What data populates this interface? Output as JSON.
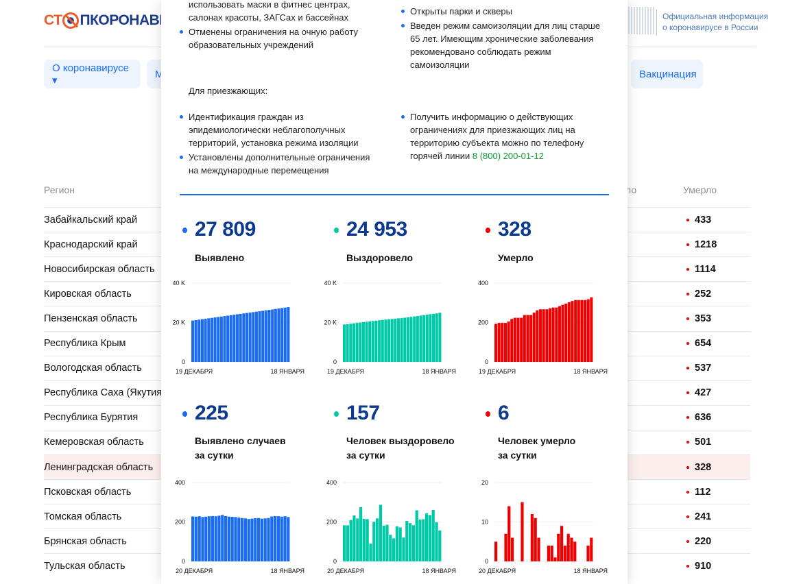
{
  "header": {
    "logo_text": "СТОПКОРОНАВИРУС",
    "logo_part1": "СТ",
    "logo_part2": "ПКОРОНАВИ",
    "gov_info": [
      "Официальная информация",
      "о коронавирусе в России"
    ]
  },
  "nav": {
    "items": [
      {
        "label": "О коронавирусе ▾"
      },
      {
        "label": "М"
      },
      {
        "label": "Вакцинация"
      }
    ]
  },
  "table": {
    "headers": {
      "region": "Регион",
      "recovered_partial": "ло",
      "deaths": "Умерло"
    },
    "rows": [
      {
        "region": "Забайкальский край",
        "deaths": "433"
      },
      {
        "region": "Краснодарский край",
        "deaths": "1218"
      },
      {
        "region": "Новосибирская область",
        "deaths": "1114"
      },
      {
        "region": "Кировская область",
        "deaths": "252"
      },
      {
        "region": "Пензенская область",
        "deaths": "353"
      },
      {
        "region": "Республика Крым",
        "deaths": "654"
      },
      {
        "region": "Вологодская область",
        "deaths": "537"
      },
      {
        "region": "Республика Саха (Якутия)",
        "deaths": "427"
      },
      {
        "region": "Республика Бурятия",
        "deaths": "636"
      },
      {
        "region": "Кемеровская область",
        "deaths": "501"
      },
      {
        "region": "Ленинградская область",
        "deaths": "328",
        "highlighted": true
      },
      {
        "region": "Псковская область",
        "deaths": "112"
      },
      {
        "region": "Томская область",
        "deaths": "241"
      },
      {
        "region": "Брянская область",
        "deaths": "220"
      },
      {
        "region": "Тульская область",
        "deaths": "910"
      }
    ]
  },
  "popup": {
    "left_top": [
      "использовать маски в фитнес центрах,",
      "салонах красоты, ЗАГСах и бассейнах"
    ],
    "left_bullet": [
      "Отменены ограничения на очную работу",
      "образовательных учреждений"
    ],
    "right_bullets": [
      [
        "Открыты парки и скверы"
      ],
      [
        "Введен режим самоизоляции для лиц старше",
        "65 лет. Имеющим хронические заболевания",
        "рекомендовано соблюдать режим",
        "самоизоляции"
      ]
    ],
    "arrivals_title": "Для приезжающих:",
    "arrivals_left": [
      [
        "Идентификация граждан из",
        "эпидемиологически неблагополучных",
        "территорий, установка режима изоляции"
      ],
      [
        "Установлены дополнительные ограничения",
        "на международные перемещения"
      ]
    ],
    "arrivals_right": [
      "Получить информацию о действующих",
      "ограничениях для приезжающих лиц на",
      "территорию субъекта можно по телефону",
      "горячей линии "
    ],
    "hotline": "8 (800) 200-01-12"
  },
  "stats": [
    {
      "value": "27 809",
      "label": [
        "Выявлено"
      ],
      "color": "#1a6cf0"
    },
    {
      "value": "24 953",
      "label": [
        "Выздоровело"
      ],
      "color": "#00c9a7"
    },
    {
      "value": "328",
      "label": [
        "Умерло"
      ],
      "color": "#f00000"
    },
    {
      "value": "225",
      "label": [
        "Выявлено случаев",
        "за сутки"
      ],
      "color": "#1a6cf0"
    },
    {
      "value": "157",
      "label": [
        "Человек выздоровело",
        "за сутки"
      ],
      "color": "#00c9a7"
    },
    {
      "value": "6",
      "label": [
        "Человек умерло",
        "за сутки"
      ],
      "color": "#f00000"
    }
  ],
  "chart_data": [
    {
      "type": "bar",
      "title": "Выявлено",
      "color": "#1a6cf0",
      "ylim": [
        0,
        40000
      ],
      "yticks": [
        "0",
        "20 K",
        "40 K"
      ],
      "ytick_values": [
        0,
        20000,
        40000
      ],
      "xlabels": [
        "19 ДЕКАБРЯ",
        "18 ЯНВАРЯ"
      ],
      "values": [
        21000,
        21230,
        21450,
        21680,
        21900,
        22130,
        22350,
        22580,
        22800,
        23030,
        23260,
        23490,
        23720,
        23950,
        24180,
        24400,
        24620,
        24840,
        25060,
        25280,
        25500,
        25720,
        25950,
        26180,
        26410,
        26640,
        26870,
        27100,
        27340,
        27580,
        27809
      ]
    },
    {
      "type": "bar",
      "title": "Выздоровело",
      "color": "#00c9a7",
      "ylim": [
        0,
        40000
      ],
      "yticks": [
        "0",
        "20 K",
        "40 K"
      ],
      "ytick_values": [
        0,
        20000,
        40000
      ],
      "xlabels": [
        "19 ДЕКАБРЯ",
        "18 ЯНВАРЯ"
      ],
      "values": [
        19000,
        19180,
        19370,
        19580,
        19800,
        20000,
        20190,
        20380,
        20560,
        20760,
        20950,
        21150,
        21330,
        21510,
        21650,
        21770,
        21950,
        22120,
        22240,
        22440,
        22630,
        22820,
        23080,
        23290,
        23500,
        23750,
        23980,
        24240,
        24440,
        24600,
        24953
      ]
    },
    {
      "type": "bar",
      "title": "Умерло",
      "color": "#f00000",
      "ylim": [
        0,
        400
      ],
      "yticks": [
        "0",
        "200",
        "400"
      ],
      "ytick_values": [
        0,
        200,
        400
      ],
      "xlabels": [
        "19 ДЕКАБРЯ",
        "18 ЯНВАРЯ"
      ],
      "values": [
        193,
        198,
        198,
        198,
        205,
        218,
        224,
        224,
        224,
        238,
        238,
        238,
        250,
        262,
        267,
        267,
        267,
        272,
        276,
        276,
        283,
        290,
        296,
        303,
        309,
        314,
        314,
        314,
        314,
        318,
        328
      ]
    },
    {
      "type": "bar",
      "title": "Выявлено случаев за сутки",
      "color": "#1a6cf0",
      "ylim": [
        0,
        400
      ],
      "yticks": [
        "0",
        "200",
        "400"
      ],
      "ytick_values": [
        0,
        200,
        400
      ],
      "xlabels": [
        "20 ДЕКАБРЯ",
        "18 ЯНВАРЯ"
      ],
      "values": [
        228,
        227,
        229,
        225,
        227,
        229,
        230,
        229,
        232,
        236,
        230,
        227,
        226,
        225,
        222,
        220,
        218,
        215,
        217,
        219,
        220,
        217,
        218,
        220,
        228,
        230,
        229,
        227,
        229,
        225
      ]
    },
    {
      "type": "bar",
      "title": "Человек выздоровело за сутки",
      "color": "#00c9a7",
      "ylim": [
        0,
        400
      ],
      "yticks": [
        "0",
        "200",
        "400"
      ],
      "ytick_values": [
        0,
        200,
        400
      ],
      "xlabels": [
        "20 ДЕКАБРЯ",
        "18 ЯНВАРЯ"
      ],
      "values": [
        183,
        183,
        210,
        233,
        218,
        275,
        216,
        214,
        90,
        201,
        218,
        287,
        181,
        186,
        135,
        117,
        178,
        172,
        121,
        205,
        194,
        183,
        259,
        212,
        214,
        243,
        235,
        261,
        198,
        157
      ]
    },
    {
      "type": "bar",
      "title": "Человек умерло за сутки",
      "color": "#f00000",
      "ylim": [
        0,
        20
      ],
      "yticks": [
        "0",
        "10",
        "20"
      ],
      "ytick_values": [
        0,
        10,
        20
      ],
      "xlabels": [
        "20 ДЕКАБРЯ",
        "18 ЯНВАРЯ"
      ],
      "values": [
        5,
        0,
        0,
        7,
        14,
        6,
        0,
        0,
        15,
        0,
        0,
        12,
        11,
        6,
        0,
        0,
        4,
        4,
        1,
        7,
        9,
        4,
        7,
        6,
        5,
        0,
        0,
        0,
        4,
        6
      ]
    }
  ]
}
